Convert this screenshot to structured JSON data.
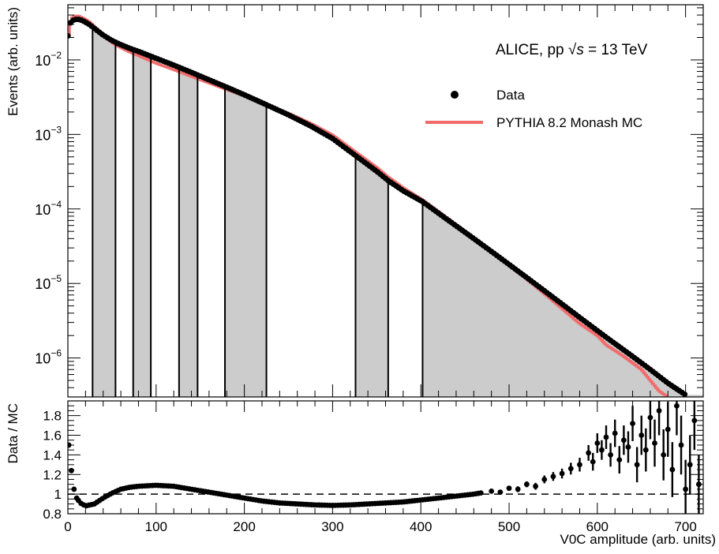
{
  "chart_data": [
    {
      "type": "scatter",
      "panel": "main",
      "ylabel": "Events (arb. units)",
      "yscale": "log",
      "xlim": [
        0,
        720
      ],
      "ylim": [
        3e-07,
        0.055
      ],
      "xticks": [
        0,
        100,
        200,
        300,
        400,
        500,
        600,
        700
      ],
      "yticks": [
        {
          "v": 1e-06,
          "base": "10",
          "exp": "−6"
        },
        {
          "v": 1e-05,
          "base": "10",
          "exp": "−5"
        },
        {
          "v": 0.0001,
          "base": "10",
          "exp": "−4"
        },
        {
          "v": 0.001,
          "base": "10",
          "exp": "−3"
        },
        {
          "v": 0.01,
          "base": "10",
          "exp": "−2"
        }
      ],
      "grid": false,
      "legend_position": "top-right",
      "annotation": {
        "prefix": "ALICE, pp ",
        "sqrt_s": "s",
        "suffix": " = 13 TeV"
      },
      "colors": {
        "data": "#000000",
        "mc": "#f26a6a",
        "shade": "#cccccc"
      },
      "class_boundaries": [
        28,
        54,
        74,
        94,
        126,
        147,
        178,
        225,
        326,
        363,
        402
      ],
      "shaded_intervals": [
        [
          28,
          54
        ],
        [
          74,
          94
        ],
        [
          126,
          147
        ],
        [
          178,
          225
        ],
        [
          326,
          363
        ],
        [
          402,
          720
        ]
      ],
      "series": [
        {
          "name": "Data",
          "style": "markers",
          "points": [
            [
              0,
              0.021
            ],
            [
              2,
              0.03
            ],
            [
              4,
              0.033
            ],
            [
              8,
              0.035
            ],
            [
              12,
              0.035
            ],
            [
              16,
              0.034
            ],
            [
              20,
              0.032
            ],
            [
              25,
              0.0295
            ],
            [
              30,
              0.0265
            ],
            [
              40,
              0.0215
            ],
            [
              50,
              0.0182
            ],
            [
              60,
              0.016
            ],
            [
              70,
              0.0143
            ],
            [
              80,
              0.013
            ],
            [
              100,
              0.0105
            ],
            [
              120,
              0.0085
            ],
            [
              140,
              0.0068
            ],
            [
              160,
              0.0054
            ],
            [
              180,
              0.0043
            ],
            [
              200,
              0.0034
            ],
            [
              225,
              0.0025
            ],
            [
              250,
              0.00183
            ],
            [
              275,
              0.0013
            ],
            [
              300,
              0.00088
            ],
            [
              326,
              0.00052
            ],
            [
              350,
              0.00032
            ],
            [
              363,
              0.00024
            ],
            [
              380,
              0.000175
            ],
            [
              402,
              0.000125
            ],
            [
              430,
              7.2e-05
            ],
            [
              460,
              4e-05
            ],
            [
              490,
              2.2e-05
            ],
            [
              520,
              1.2e-05
            ],
            [
              550,
              6.5e-06
            ],
            [
              580,
              3.5e-06
            ],
            [
              610,
              1.9e-06
            ],
            [
              640,
              1.05e-06
            ],
            [
              660,
              7e-07
            ],
            [
              680,
              4.6e-07
            ],
            [
              700,
              3.2e-07
            ]
          ]
        },
        {
          "name": "PYTHIA 8.2 Monash MC",
          "style": "step",
          "points": [
            [
              0,
              0.014
            ],
            [
              2,
              0.03
            ],
            [
              4,
              0.036
            ],
            [
              8,
              0.039
            ],
            [
              12,
              0.039
            ],
            [
              16,
              0.037
            ],
            [
              20,
              0.035
            ],
            [
              25,
              0.032
            ],
            [
              30,
              0.028
            ],
            [
              40,
              0.0216
            ],
            [
              50,
              0.0172
            ],
            [
              60,
              0.0146
            ],
            [
              70,
              0.0128
            ],
            [
              80,
              0.0114
            ],
            [
              100,
              0.009
            ],
            [
              120,
              0.0074
            ],
            [
              140,
              0.006
            ],
            [
              160,
              0.0049
            ],
            [
              180,
              0.004
            ],
            [
              200,
              0.0033
            ],
            [
              225,
              0.0025
            ],
            [
              250,
              0.00192
            ],
            [
              275,
              0.00141
            ],
            [
              300,
              0.00098
            ],
            [
              326,
              0.00058
            ],
            [
              350,
              0.00036
            ],
            [
              363,
              0.000268
            ],
            [
              380,
              0.000192
            ],
            [
              402,
              0.000132
            ],
            [
              430,
              7.5e-05
            ],
            [
              460,
              4.1e-05
            ],
            [
              490,
              2.2e-05
            ],
            [
              520,
              1.15e-05
            ],
            [
              550,
              5.8e-06
            ],
            [
              580,
              2.9e-06
            ],
            [
              600,
              2e-06
            ],
            [
              610,
              1.5e-06
            ],
            [
              630,
              1.05e-06
            ],
            [
              650,
              7e-07
            ],
            [
              660,
              5e-07
            ],
            [
              670,
              3.6e-07
            ],
            [
              680,
              3e-07
            ]
          ]
        }
      ]
    },
    {
      "type": "scatter",
      "panel": "ratio",
      "xlabel": "V0C amplitude (arb. units)",
      "ylabel": "Data / MC",
      "xlim": [
        0,
        720
      ],
      "ylim": [
        0.8,
        1.95
      ],
      "xticks": [
        0,
        100,
        200,
        300,
        400,
        500,
        600,
        700
      ],
      "yticks": [
        0.8,
        1,
        1.2,
        1.4,
        1.6,
        1.8
      ],
      "reference_line": 1,
      "series": [
        {
          "name": "Data / MC",
          "style": "markers-with-errors",
          "points": [
            [
              1,
              1.5,
              0.02
            ],
            [
              4,
              1.24,
              0.01
            ],
            [
              7,
              1.05,
              0.01
            ],
            [
              10,
              0.96,
              0.005
            ],
            [
              14,
              0.91,
              0.005
            ],
            [
              20,
              0.88,
              0.005
            ],
            [
              30,
              0.9,
              0.004
            ],
            [
              40,
              0.96,
              0.004
            ],
            [
              50,
              1.01,
              0.004
            ],
            [
              60,
              1.05,
              0.004
            ],
            [
              70,
              1.07,
              0.004
            ],
            [
              80,
              1.08,
              0.004
            ],
            [
              100,
              1.09,
              0.004
            ],
            [
              120,
              1.08,
              0.004
            ],
            [
              140,
              1.05,
              0.004
            ],
            [
              160,
              1.02,
              0.004
            ],
            [
              180,
              0.99,
              0.004
            ],
            [
              200,
              0.96,
              0.004
            ],
            [
              220,
              0.93,
              0.004
            ],
            [
              240,
              0.91,
              0.004
            ],
            [
              260,
              0.9,
              0.004
            ],
            [
              280,
              0.89,
              0.004
            ],
            [
              300,
              0.885,
              0.004
            ],
            [
              320,
              0.89,
              0.005
            ],
            [
              340,
              0.9,
              0.006
            ],
            [
              360,
              0.91,
              0.007
            ],
            [
              380,
              0.92,
              0.008
            ],
            [
              400,
              0.94,
              0.009
            ],
            [
              420,
              0.96,
              0.01
            ],
            [
              440,
              0.98,
              0.012
            ],
            [
              460,
              1.0,
              0.015
            ],
            [
              480,
              1.03,
              0.02
            ],
            [
              490,
              1.02,
              0.02
            ],
            [
              500,
              1.06,
              0.025
            ],
            [
              510,
              1.05,
              0.03
            ],
            [
              520,
              1.1,
              0.03
            ],
            [
              530,
              1.08,
              0.035
            ],
            [
              540,
              1.15,
              0.04
            ],
            [
              550,
              1.18,
              0.045
            ],
            [
              560,
              1.21,
              0.05
            ],
            [
              570,
              1.26,
              0.06
            ],
            [
              580,
              1.3,
              0.07
            ],
            [
              590,
              1.42,
              0.08
            ],
            [
              595,
              1.33,
              0.09
            ],
            [
              600,
              1.52,
              0.1
            ],
            [
              605,
              1.45,
              0.1
            ],
            [
              610,
              1.58,
              0.12
            ],
            [
              615,
              1.4,
              0.12
            ],
            [
              620,
              1.62,
              0.14
            ],
            [
              625,
              1.35,
              0.14
            ],
            [
              630,
              1.55,
              0.15
            ],
            [
              635,
              1.48,
              0.16
            ],
            [
              640,
              1.72,
              0.18
            ],
            [
              645,
              1.3,
              0.18
            ],
            [
              650,
              1.6,
              0.2
            ],
            [
              655,
              1.45,
              0.22
            ],
            [
              660,
              1.78,
              0.22
            ],
            [
              665,
              1.52,
              0.24
            ],
            [
              670,
              1.85,
              0.25
            ],
            [
              675,
              1.4,
              0.26
            ],
            [
              680,
              1.66,
              0.28
            ],
            [
              685,
              1.25,
              0.28
            ],
            [
              690,
              1.9,
              0.3
            ],
            [
              695,
              1.5,
              0.3
            ],
            [
              700,
              1.05,
              0.3
            ],
            [
              705,
              1.3,
              0.3
            ],
            [
              710,
              1.75,
              0.3
            ],
            [
              715,
              1.1,
              0.3
            ]
          ]
        }
      ]
    }
  ]
}
